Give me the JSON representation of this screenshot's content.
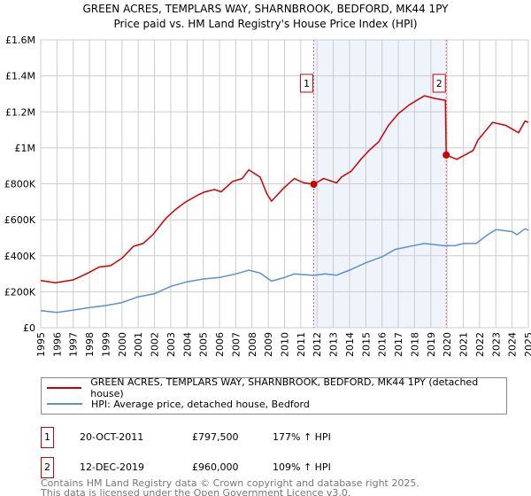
{
  "title": "GREEN ACRES, TEMPLARS WAY, SHARNBROOK, BEDFORD, MK44 1PY",
  "subtitle": "Price paid vs. HM Land Registry's House Price Index (HPI)",
  "colors": {
    "property": "#cc0000",
    "hpi": "#5b8fd4",
    "shade": "#eef3fc",
    "grid": "#cccccc"
  },
  "chart_data": {
    "type": "line",
    "title": "GREEN ACRES, TEMPLARS WAY, SHARNBROOK, BEDFORD, MK44 1PY — Price paid vs. HM Land Registry's House Price Index (HPI)",
    "xlim": [
      1995,
      2025
    ],
    "ylim": [
      0,
      1600000
    ],
    "x_ticks": [
      "1995",
      "1996",
      "1997",
      "1998",
      "1999",
      "2000",
      "2001",
      "2002",
      "2003",
      "2004",
      "2005",
      "2006",
      "2007",
      "2008",
      "2009",
      "2010",
      "2011",
      "2012",
      "2013",
      "2014",
      "2015",
      "2016",
      "2017",
      "2018",
      "2019",
      "2020",
      "2021",
      "2022",
      "2023",
      "2024",
      "2025"
    ],
    "y_ticks": [
      {
        "v": 0,
        "l": "£0"
      },
      {
        "v": 200000,
        "l": "£200K"
      },
      {
        "v": 400000,
        "l": "£400K"
      },
      {
        "v": 600000,
        "l": "£600K"
      },
      {
        "v": 800000,
        "l": "£800K"
      },
      {
        "v": 1000000,
        "l": "£1M"
      },
      {
        "v": 1200000,
        "l": "£1.2M"
      },
      {
        "v": 1400000,
        "l": "£1.4M"
      },
      {
        "v": 1600000,
        "l": "£1.6M"
      }
    ],
    "grid": true,
    "series": [
      {
        "name": "GREEN ACRES, TEMPLARS WAY, SHARNBROOK, BEDFORD, MK44 1PY (detached house)",
        "color": "#cc0000",
        "x": [
          1995,
          1995.9,
          1997,
          1997.9,
          1998.6,
          1999.3,
          2000,
          2000.7,
          2001.3,
          2001.9,
          2002.7,
          2003.3,
          2003.9,
          2004.7,
          2005.1,
          2005.7,
          2006.1,
          2006.8,
          2007.4,
          2007.8,
          2008.5,
          2008.9,
          2009.2,
          2009.9,
          2010.6,
          2011.2,
          2011.8,
          2012.4,
          2013.2,
          2013.5,
          2014.1,
          2014.7,
          2015.2,
          2015.8,
          2016.4,
          2017,
          2017.7,
          2018.6,
          2019.3,
          2019.9,
          2019.95,
          2020.6,
          2021.6,
          2021.9,
          2022.8,
          2023.6,
          2024.4,
          2024.8,
          2025
        ],
        "values": [
          262000,
          250000,
          266000,
          304000,
          337000,
          345000,
          386000,
          452000,
          468000,
          517000,
          608000,
          657000,
          698000,
          739000,
          755000,
          768000,
          755000,
          813000,
          829000,
          878000,
          837000,
          747000,
          703000,
          772000,
          829000,
          805000,
          797500,
          829000,
          805000,
          837000,
          870000,
          936000,
          985000,
          1034000,
          1125000,
          1190000,
          1240000,
          1289000,
          1273000,
          1264000,
          960000,
          936000,
          985000,
          1043000,
          1141000,
          1125000,
          1084000,
          1149000,
          1141000
        ]
      },
      {
        "name": "HPI: Average price, detached house, Bedford",
        "color": "#5b8fd4",
        "x": [
          1995,
          1996,
          1997,
          1998,
          1999,
          2000,
          2001,
          2002,
          2003,
          2004,
          2005,
          2006,
          2007,
          2007.8,
          2008.5,
          2009.2,
          2010,
          2010.6,
          2011.8,
          2012.5,
          2013.2,
          2014,
          2015,
          2016,
          2016.8,
          2017.7,
          2018.6,
          2019.8,
          2020.5,
          2021,
          2021.8,
          2022.5,
          2023,
          2024,
          2024.3,
          2024.8,
          2025
        ],
        "values": [
          95000,
          85000,
          98000,
          112000,
          123000,
          140000,
          172000,
          189000,
          230000,
          255000,
          271000,
          279000,
          299000,
          320000,
          304000,
          259000,
          279000,
          299000,
          291000,
          299000,
          292000,
          320000,
          361000,
          394000,
          435000,
          452000,
          468000,
          456000,
          456000,
          468000,
          468000,
          517000,
          545000,
          534000,
          517000,
          550000,
          542000
        ]
      }
    ],
    "annotations": [
      {
        "label": "1",
        "x": 2011.8,
        "y": 797500
      },
      {
        "label": "2",
        "x": 2019.95,
        "y": 960000
      }
    ],
    "shaded_range": [
      2011.8,
      2019.95
    ],
    "legend_position": "bottom"
  },
  "legend": {
    "property": "GREEN ACRES, TEMPLARS WAY, SHARNBROOK, BEDFORD, MK44 1PY (detached house)",
    "hpi": "HPI: Average price, detached house, Bedford"
  },
  "sales": [
    {
      "num": "1",
      "date": "20-OCT-2011",
      "price": "£797,500",
      "hpi": "177% ↑ HPI"
    },
    {
      "num": "2",
      "date": "12-DEC-2019",
      "price": "£960,000",
      "hpi": "109% ↑ HPI"
    }
  ],
  "footer": {
    "line1": "Contains HM Land Registry data © Crown copyright and database right 2025.",
    "line2": "This data is licensed under the Open Government Licence v3.0."
  }
}
